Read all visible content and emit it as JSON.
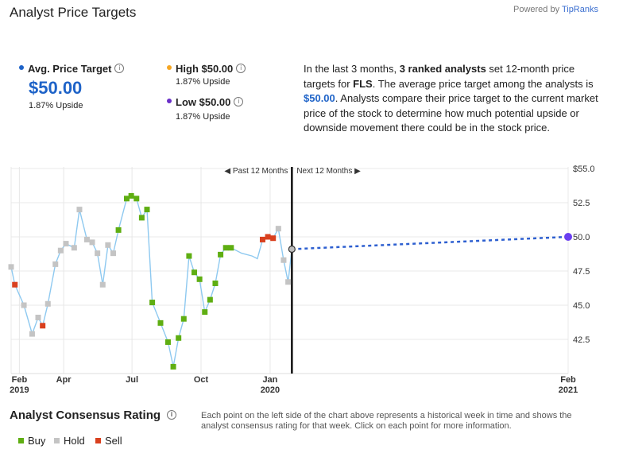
{
  "header": {
    "title": "Analyst Price Targets",
    "powered_prefix": "Powered by ",
    "powered_brand": "TipRanks"
  },
  "summary": {
    "avg_label": "Avg. Price Target",
    "avg_value": "$50.00",
    "avg_upside": "1.87% Upside",
    "high_label": "High $50.00",
    "high_upside": "1.87% Upside",
    "low_label": "Low $50.00",
    "low_upside": "1.87% Upside",
    "colors": {
      "avg": "#1e63c8",
      "high": "#f5a623",
      "low": "#6a2fc8"
    }
  },
  "description": {
    "p1": "In the last 3 months, ",
    "b1": "3 ranked analysts",
    "p2": " set 12-month price targets for ",
    "b2": "FLS",
    "p3": ". The average price target among the analysts is ",
    "b3": "$50.00",
    "p4": ". Analysts compare their price target to the current market price of the stock to determine how much potential upside or downside movement there could be in the stock price."
  },
  "chart_data": {
    "type": "line",
    "past_label": "◀ Past 12 Months",
    "next_label": "Next 12 Months ▶",
    "y_ticks": [
      "$55.0",
      "52.5",
      "50.0",
      "47.5",
      "45.0",
      "42.5"
    ],
    "y_tick_values": [
      55.0,
      52.5,
      50.0,
      47.5,
      45.0,
      42.5
    ],
    "ylim": [
      40.0,
      55.0
    ],
    "x_ticks": [
      {
        "label": "Feb",
        "year": "2019",
        "date": "2019-02-01"
      },
      {
        "label": "Apr",
        "year": "",
        "date": "2019-04-01"
      },
      {
        "label": "Jul",
        "year": "",
        "date": "2019-07-01"
      },
      {
        "label": "Oct",
        "year": "",
        "date": "2019-10-01"
      },
      {
        "label": "Jan",
        "year": "2020",
        "date": "2020-01-01"
      },
      {
        "label": "Feb",
        "year": "2021",
        "date": "2021-02-01"
      }
    ],
    "today": "2020-01-30",
    "price_series": {
      "points": [
        {
          "date": "2019-01-21",
          "price": 47.8
        },
        {
          "date": "2019-01-26",
          "price": 46.5
        },
        {
          "date": "2019-02-07",
          "price": 45.0
        },
        {
          "date": "2019-02-18",
          "price": 42.9
        },
        {
          "date": "2019-02-26",
          "price": 44.1
        },
        {
          "date": "2019-03-04",
          "price": 43.5
        },
        {
          "date": "2019-03-11",
          "price": 45.1
        },
        {
          "date": "2019-03-21",
          "price": 48.0
        },
        {
          "date": "2019-03-28",
          "price": 49.0
        },
        {
          "date": "2019-04-04",
          "price": 49.5
        },
        {
          "date": "2019-04-15",
          "price": 49.2
        },
        {
          "date": "2019-04-22",
          "price": 52.0
        },
        {
          "date": "2019-05-02",
          "price": 49.8
        },
        {
          "date": "2019-05-09",
          "price": 49.6
        },
        {
          "date": "2019-05-16",
          "price": 48.8
        },
        {
          "date": "2019-05-23",
          "price": 46.5
        },
        {
          "date": "2019-05-30",
          "price": 49.4
        },
        {
          "date": "2019-06-06",
          "price": 48.8
        },
        {
          "date": "2019-06-13",
          "price": 50.5
        },
        {
          "date": "2019-06-24",
          "price": 52.8
        },
        {
          "date": "2019-06-30",
          "price": 53.0
        },
        {
          "date": "2019-07-07",
          "price": 52.8
        },
        {
          "date": "2019-07-14",
          "price": 51.4
        },
        {
          "date": "2019-07-21",
          "price": 52.0
        },
        {
          "date": "2019-07-28",
          "price": 45.2
        },
        {
          "date": "2019-08-08",
          "price": 43.7
        },
        {
          "date": "2019-08-18",
          "price": 42.3
        },
        {
          "date": "2019-08-25",
          "price": 40.5
        },
        {
          "date": "2019-09-01",
          "price": 42.6
        },
        {
          "date": "2019-09-08",
          "price": 44.0
        },
        {
          "date": "2019-09-15",
          "price": 48.6
        },
        {
          "date": "2019-09-22",
          "price": 47.4
        },
        {
          "date": "2019-09-29",
          "price": 46.9
        },
        {
          "date": "2019-10-06",
          "price": 44.5
        },
        {
          "date": "2019-10-13",
          "price": 45.4
        },
        {
          "date": "2019-10-20",
          "price": 46.6
        },
        {
          "date": "2019-10-27",
          "price": 48.7
        },
        {
          "date": "2019-11-03",
          "price": 49.2
        },
        {
          "date": "2019-11-10",
          "price": 49.2
        },
        {
          "date": "2019-11-24",
          "price": 48.8
        },
        {
          "date": "2019-12-08",
          "price": 48.6
        },
        {
          "date": "2019-12-15",
          "price": 48.4
        },
        {
          "date": "2019-12-22",
          "price": 49.8
        },
        {
          "date": "2019-12-29",
          "price": 50.0
        },
        {
          "date": "2020-01-05",
          "price": 49.9
        },
        {
          "date": "2020-01-12",
          "price": 50.6
        },
        {
          "date": "2020-01-19",
          "price": 48.3
        },
        {
          "date": "2020-01-25",
          "price": 46.7
        },
        {
          "date": "2020-01-30",
          "price": 49.1
        }
      ]
    },
    "ratings": [
      {
        "date": "2019-01-21",
        "value": 47.8,
        "rating": "hold"
      },
      {
        "date": "2019-01-26",
        "value": 46.5,
        "rating": "sell"
      },
      {
        "date": "2019-02-07",
        "value": 45.0,
        "rating": "hold"
      },
      {
        "date": "2019-02-18",
        "value": 42.9,
        "rating": "hold"
      },
      {
        "date": "2019-02-26",
        "value": 44.1,
        "rating": "hold"
      },
      {
        "date": "2019-03-04",
        "value": 43.5,
        "rating": "sell"
      },
      {
        "date": "2019-03-11",
        "value": 45.1,
        "rating": "hold"
      },
      {
        "date": "2019-03-21",
        "value": 48.0,
        "rating": "hold"
      },
      {
        "date": "2019-03-28",
        "value": 49.0,
        "rating": "hold"
      },
      {
        "date": "2019-04-04",
        "value": 49.5,
        "rating": "hold"
      },
      {
        "date": "2019-04-15",
        "value": 49.2,
        "rating": "hold"
      },
      {
        "date": "2019-04-22",
        "value": 52.0,
        "rating": "hold"
      },
      {
        "date": "2019-05-02",
        "value": 49.8,
        "rating": "hold"
      },
      {
        "date": "2019-05-09",
        "value": 49.6,
        "rating": "hold"
      },
      {
        "date": "2019-05-16",
        "value": 48.8,
        "rating": "hold"
      },
      {
        "date": "2019-05-23",
        "value": 46.5,
        "rating": "hold"
      },
      {
        "date": "2019-05-30",
        "value": 49.4,
        "rating": "hold"
      },
      {
        "date": "2019-06-06",
        "value": 48.8,
        "rating": "hold"
      },
      {
        "date": "2019-06-13",
        "value": 50.5,
        "rating": "buy"
      },
      {
        "date": "2019-06-24",
        "value": 52.8,
        "rating": "buy"
      },
      {
        "date": "2019-06-30",
        "value": 53.0,
        "rating": "buy"
      },
      {
        "date": "2019-07-07",
        "value": 52.8,
        "rating": "buy"
      },
      {
        "date": "2019-07-14",
        "value": 51.4,
        "rating": "buy"
      },
      {
        "date": "2019-07-21",
        "value": 52.0,
        "rating": "buy"
      },
      {
        "date": "2019-07-28",
        "value": 45.2,
        "rating": "buy"
      },
      {
        "date": "2019-08-08",
        "value": 43.7,
        "rating": "buy"
      },
      {
        "date": "2019-08-18",
        "value": 42.3,
        "rating": "buy"
      },
      {
        "date": "2019-08-25",
        "value": 40.5,
        "rating": "buy"
      },
      {
        "date": "2019-09-01",
        "value": 42.6,
        "rating": "buy"
      },
      {
        "date": "2019-09-08",
        "value": 44.0,
        "rating": "buy"
      },
      {
        "date": "2019-09-15",
        "value": 48.6,
        "rating": "buy"
      },
      {
        "date": "2019-09-22",
        "value": 47.4,
        "rating": "buy"
      },
      {
        "date": "2019-09-29",
        "value": 46.9,
        "rating": "buy"
      },
      {
        "date": "2019-10-06",
        "value": 44.5,
        "rating": "buy"
      },
      {
        "date": "2019-10-13",
        "value": 45.4,
        "rating": "buy"
      },
      {
        "date": "2019-10-20",
        "value": 46.6,
        "rating": "buy"
      },
      {
        "date": "2019-10-27",
        "value": 48.7,
        "rating": "buy"
      },
      {
        "date": "2019-11-03",
        "value": 49.2,
        "rating": "buy"
      },
      {
        "date": "2019-11-10",
        "value": 49.2,
        "rating": "buy"
      },
      {
        "date": "2019-12-22",
        "value": 49.8,
        "rating": "sell"
      },
      {
        "date": "2019-12-29",
        "value": 50.0,
        "rating": "sell"
      },
      {
        "date": "2020-01-05",
        "value": 49.9,
        "rating": "sell"
      },
      {
        "date": "2020-01-12",
        "value": 50.6,
        "rating": "hold"
      },
      {
        "date": "2020-01-19",
        "value": 48.3,
        "rating": "hold"
      },
      {
        "date": "2020-01-25",
        "value": 46.7,
        "rating": "hold"
      }
    ],
    "current_point": {
      "date": "2020-01-30",
      "value": 49.1
    },
    "target_point": {
      "date": "2021-02-01",
      "value": 50.0
    },
    "colors": {
      "price_line": "#8ec9f0",
      "forecast_line": "#2d5fd0",
      "target_dot": "#6a3ff0",
      "buy": "#5fae12",
      "hold": "#c4c4c4",
      "sell": "#d9401e",
      "today_line": "#111111",
      "grid": "#e8e8e8"
    }
  },
  "consensus": {
    "title": "Analyst Consensus Rating",
    "description": "Each point on the left side of the chart above represents a historical week in time and shows the analyst consensus rating for that week. Click on each point for more information.",
    "legend": [
      {
        "key": "buy",
        "label": "Buy"
      },
      {
        "key": "hold",
        "label": "Hold"
      },
      {
        "key": "sell",
        "label": "Sell"
      }
    ]
  }
}
